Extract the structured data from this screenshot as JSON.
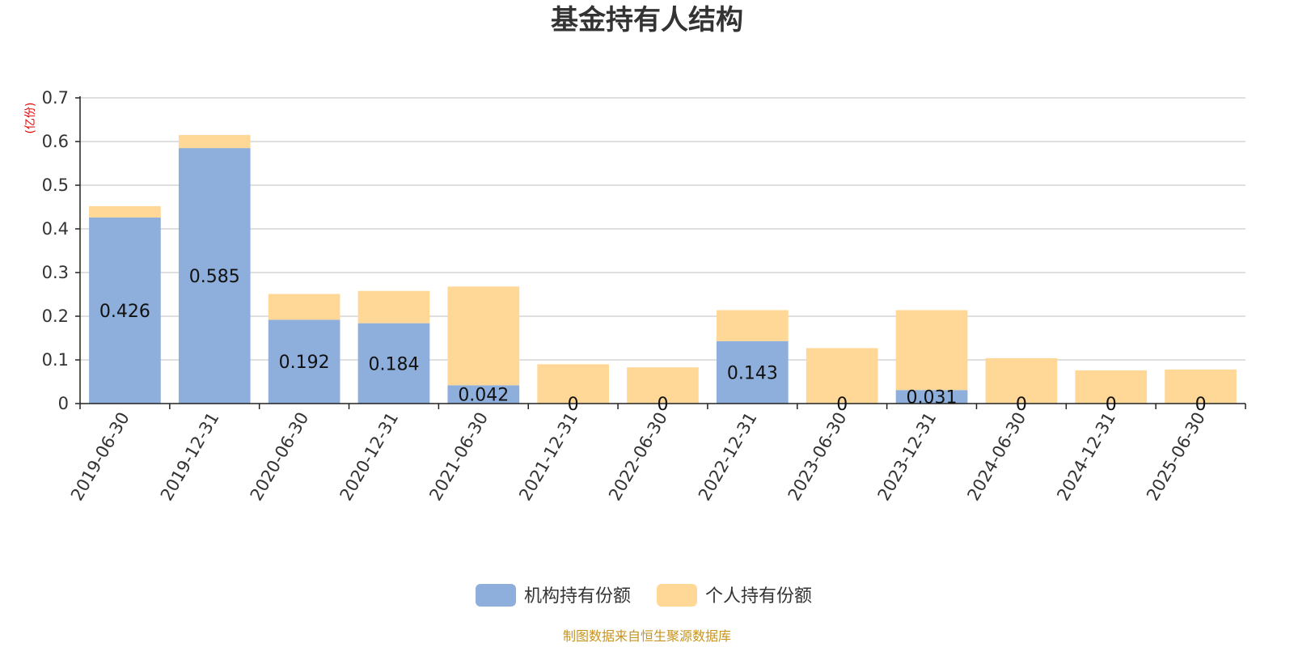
{
  "chart_data": {
    "type": "bar",
    "stacked": true,
    "title": "基金持有人结构",
    "ylabel": "(亿份)",
    "ylim": [
      0,
      0.7
    ],
    "yticks": [
      "0",
      "0.1",
      "0.2",
      "0.3",
      "0.4",
      "0.5",
      "0.6",
      "0.7"
    ],
    "grid": true,
    "legend_position": "bottom-center",
    "categories": [
      "2019-06-30",
      "2019-12-31",
      "2020-06-30",
      "2020-12-31",
      "2021-06-30",
      "2021-12-31",
      "2022-06-30",
      "2022-12-31",
      "2023-06-30",
      "2023-12-31",
      "2024-06-30",
      "2024-12-31",
      "2025-06-30"
    ],
    "series": [
      {
        "name": "机构持有份额",
        "color": "#8eaedb",
        "values": [
          0.426,
          0.585,
          0.192,
          0.184,
          0.042,
          0,
          0,
          0.143,
          0,
          0.031,
          0,
          0,
          0
        ],
        "labels": [
          "0.426",
          "0.585",
          "0.192",
          "0.184",
          "0.042",
          "0",
          "0",
          "0.143",
          "0",
          "0.031",
          "0",
          "0",
          "0"
        ]
      },
      {
        "name": "个人持有份额",
        "color": "#ffd898",
        "values": [
          0.026,
          0.03,
          0.059,
          0.074,
          0.226,
          0.09,
          0.083,
          0.071,
          0.127,
          0.183,
          0.104,
          0.076,
          0.078
        ]
      }
    ]
  },
  "footer": {
    "source": "制图数据来自恒生聚源数据库"
  }
}
